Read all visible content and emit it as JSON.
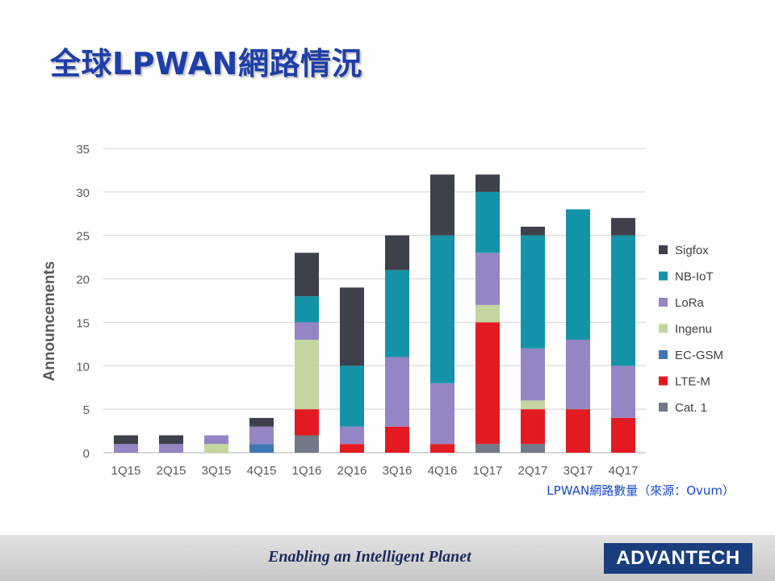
{
  "slide": {
    "title": "全球LPWAN網路情況",
    "source_note": "LPWAN網路數量（來源：Ovum）"
  },
  "footer": {
    "tagline": "Enabling an Intelligent Planet",
    "logo_text": "ADVANTECH"
  },
  "chart_data": {
    "type": "bar",
    "stacked": true,
    "categories": [
      "1Q15",
      "2Q15",
      "3Q15",
      "4Q15",
      "1Q16",
      "2Q16",
      "3Q16",
      "4Q16",
      "1Q17",
      "2Q17",
      "3Q17",
      "4Q17"
    ],
    "ylabel": "Announcements",
    "ylim": [
      0,
      35
    ],
    "yticks": [
      0,
      5,
      10,
      15,
      20,
      25,
      30,
      35
    ],
    "grid": true,
    "legend_position": "right",
    "series": [
      {
        "name": "Cat. 1",
        "color": "#717a86",
        "values": [
          0,
          0,
          0,
          0,
          2,
          0,
          0,
          0,
          1,
          1,
          0,
          0
        ]
      },
      {
        "name": "LTE-M",
        "color": "#e31a22",
        "values": [
          0,
          0,
          0,
          0,
          3,
          1,
          3,
          1,
          14,
          4,
          5,
          4
        ]
      },
      {
        "name": "EC-GSM",
        "color": "#3d78b3",
        "values": [
          0,
          0,
          0,
          1,
          0,
          0,
          0,
          0,
          0,
          0,
          0,
          0
        ]
      },
      {
        "name": "Ingenu",
        "color": "#c3d6a0",
        "values": [
          0,
          0,
          1,
          0,
          8,
          0,
          0,
          0,
          2,
          1,
          0,
          0
        ]
      },
      {
        "name": "LoRa",
        "color": "#9585c4",
        "values": [
          1,
          1,
          1,
          2,
          2,
          2,
          8,
          7,
          6,
          6,
          8,
          6
        ]
      },
      {
        "name": "NB-IoT",
        "color": "#1493a8",
        "values": [
          0,
          0,
          0,
          0,
          3,
          7,
          10,
          17,
          7,
          13,
          15,
          15
        ]
      },
      {
        "name": "Sigfox",
        "color": "#3e414b",
        "values": [
          1,
          1,
          0,
          1,
          5,
          9,
          4,
          7,
          2,
          1,
          0,
          2
        ]
      }
    ],
    "legend_order": [
      "Sigfox",
      "NB-IoT",
      "LoRa",
      "Ingenu",
      "EC-GSM",
      "LTE-M",
      "Cat. 1"
    ]
  }
}
